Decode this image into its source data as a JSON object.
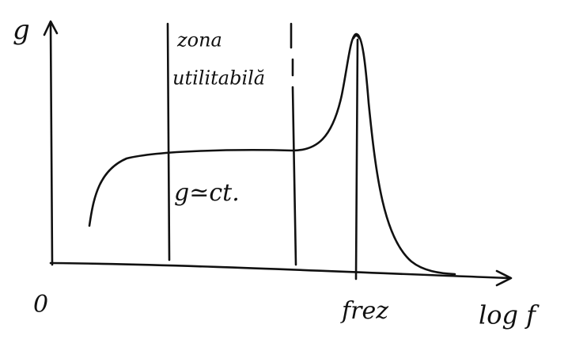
{
  "y_axis_label": "g",
  "origin_label": "0",
  "x_axis_label": "log f",
  "resonance_label": "frez",
  "zone_label": {
    "line1": "zona",
    "line2": "utilitabilă"
  },
  "plateau_label": "g≃ct."
}
